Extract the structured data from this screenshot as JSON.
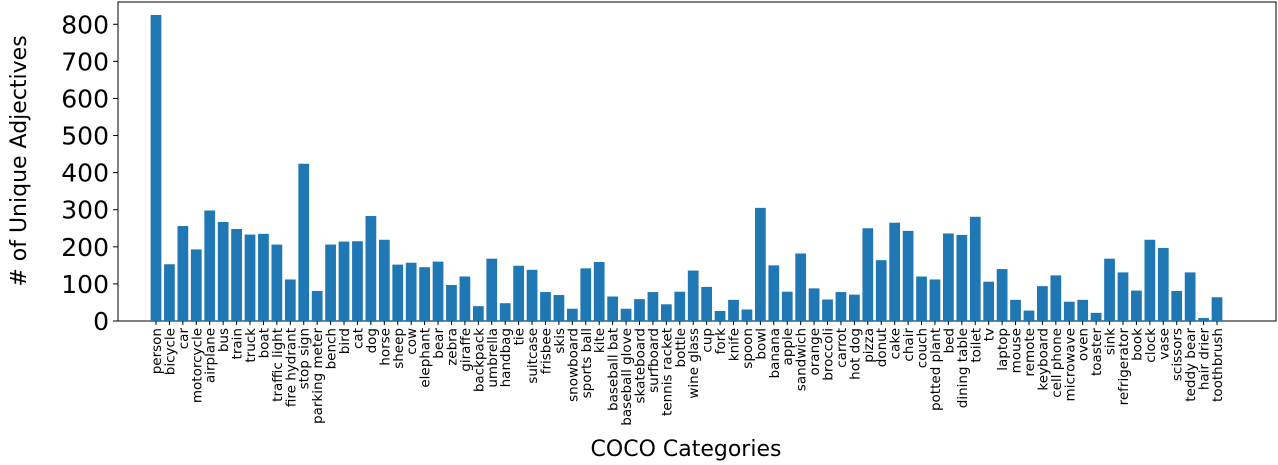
{
  "chart_data": {
    "type": "bar",
    "title": "",
    "xlabel": "COCO Categories",
    "ylabel": "# of Unique Adjectives",
    "ylim": [
      0,
      860
    ],
    "yticks": [
      0,
      100,
      200,
      300,
      400,
      500,
      600,
      700,
      800
    ],
    "grid": false,
    "bar_color": "#1f77b4",
    "categories": [
      "person",
      "bicycle",
      "car",
      "motorcycle",
      "airplane",
      "bus",
      "train",
      "truck",
      "boat",
      "traffic light",
      "fire hydrant",
      "stop sign",
      "parking meter",
      "bench",
      "bird",
      "cat",
      "dog",
      "horse",
      "sheep",
      "cow",
      "elephant",
      "bear",
      "zebra",
      "giraffe",
      "backpack",
      "umbrella",
      "handbag",
      "tie",
      "suitcase",
      "frisbee",
      "skis",
      "snowboard",
      "sports ball",
      "kite",
      "baseball bat",
      "baseball glove",
      "skateboard",
      "surfboard",
      "tennis racket",
      "bottle",
      "wine glass",
      "cup",
      "fork",
      "knife",
      "spoon",
      "bowl",
      "banana",
      "apple",
      "sandwich",
      "orange",
      "broccoli",
      "carrot",
      "hot dog",
      "pizza",
      "donut",
      "cake",
      "chair",
      "couch",
      "potted plant",
      "bed",
      "dining table",
      "toilet",
      "tv",
      "laptop",
      "mouse",
      "remote",
      "keyboard",
      "cell phone",
      "microwave",
      "oven",
      "toaster",
      "sink",
      "refrigerator",
      "book",
      "clock",
      "vase",
      "scissors",
      "teddy bear",
      "hair drier",
      "toothbrush"
    ],
    "values": [
      825,
      153,
      256,
      193,
      298,
      267,
      248,
      233,
      235,
      206,
      112,
      424,
      81,
      206,
      214,
      215,
      283,
      219,
      152,
      157,
      145,
      160,
      97,
      120,
      40,
      168,
      48,
      149,
      138,
      78,
      70,
      33,
      142,
      159,
      66,
      33,
      59,
      78,
      45,
      79,
      136,
      92,
      27,
      57,
      31,
      305,
      150,
      79,
      182,
      88,
      58,
      78,
      71,
      250,
      164,
      265,
      243,
      120,
      112,
      236,
      232,
      281,
      106,
      140,
      57,
      28,
      94,
      123,
      52,
      57,
      22,
      168,
      131,
      82,
      219,
      197,
      81,
      131,
      8,
      64
    ]
  }
}
